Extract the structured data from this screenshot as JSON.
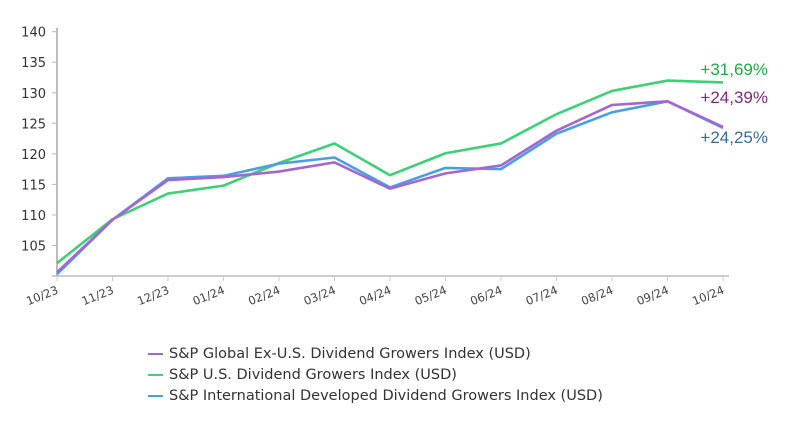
{
  "chart_data": {
    "type": "line",
    "title": "",
    "xlabel": "",
    "ylabel": "",
    "ylim": [
      100,
      140
    ],
    "yticks": [
      105,
      110,
      115,
      120,
      125,
      130,
      135,
      140
    ],
    "grid": false,
    "legend_position": "bottom",
    "categories": [
      "10/23",
      "11/23",
      "12/23",
      "01/24",
      "02/24",
      "03/24",
      "04/24",
      "05/24",
      "06/24",
      "07/24",
      "08/24",
      "09/24",
      "10/24"
    ],
    "series": [
      {
        "name": "S&P Global Ex-U.S. Dividend Growers Index (USD)",
        "color": "#a466cf",
        "label_color": "#7d2a80",
        "end_label": "+24,39%",
        "values": [
          100.6,
          109.2,
          115.7,
          116.2,
          117.1,
          118.6,
          114.3,
          116.8,
          118.1,
          123.8,
          128.0,
          128.6,
          124.4
        ]
      },
      {
        "name": "S&P U.S. Dividend Growers Index (USD)",
        "color": "#3fcf78",
        "label_color": "#1fa84a",
        "end_label": "+31,69%",
        "values": [
          102.1,
          109.3,
          113.5,
          114.8,
          118.5,
          121.7,
          116.5,
          120.1,
          121.7,
          126.5,
          130.3,
          132.0,
          131.7
        ]
      },
      {
        "name": "S&P International Developed Dividend Growers Index (USD)",
        "color": "#4a9fe0",
        "label_color": "#3b6b9c",
        "end_label": "+24,25%",
        "values": [
          100.3,
          109.2,
          116.0,
          116.4,
          118.4,
          119.4,
          114.5,
          117.7,
          117.5,
          123.3,
          126.8,
          128.6,
          124.25
        ]
      }
    ]
  }
}
